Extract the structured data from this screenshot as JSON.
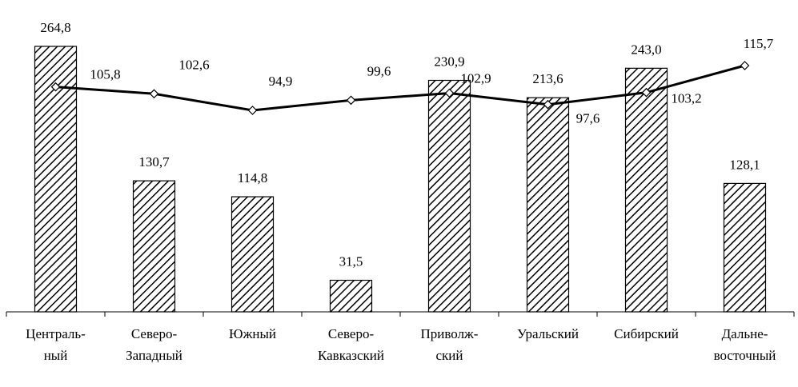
{
  "chart_data": {
    "type": "bar",
    "categories": [
      [
        "Централь-",
        "ный"
      ],
      [
        "Северо-",
        "Западный"
      ],
      [
        "Южный"
      ],
      [
        "Северо-",
        "Кавказский"
      ],
      [
        "Приволж-",
        "ский"
      ],
      [
        "Уральский"
      ],
      [
        "Сибирский"
      ],
      [
        "Дальне-",
        "восточный"
      ]
    ],
    "bars": {
      "values": [
        264.8,
        130.7,
        114.8,
        31.5,
        230.9,
        213.6,
        243.0,
        128.1
      ],
      "labels": [
        "264,8",
        "130,7",
        "114,8",
        "31,5",
        "230,9",
        "213,6",
        "243,0",
        "128,1"
      ],
      "ylim": [
        0,
        264.8
      ],
      "pattern": "diagonal-hatch",
      "color": "#000000"
    },
    "line": {
      "values": [
        105.8,
        102.6,
        94.9,
        99.6,
        102.9,
        97.6,
        103.2,
        115.7
      ],
      "labels": [
        "105,8",
        "102,6",
        "94,9",
        "99,6",
        "102,9",
        "97,6",
        "103,2",
        "115,7"
      ],
      "ylim": [
        94.9,
        115.7
      ],
      "marker": "diamond",
      "color": "#000000"
    },
    "title": "",
    "xlabel": "",
    "ylabel": "",
    "legend": "none",
    "grid": false
  }
}
